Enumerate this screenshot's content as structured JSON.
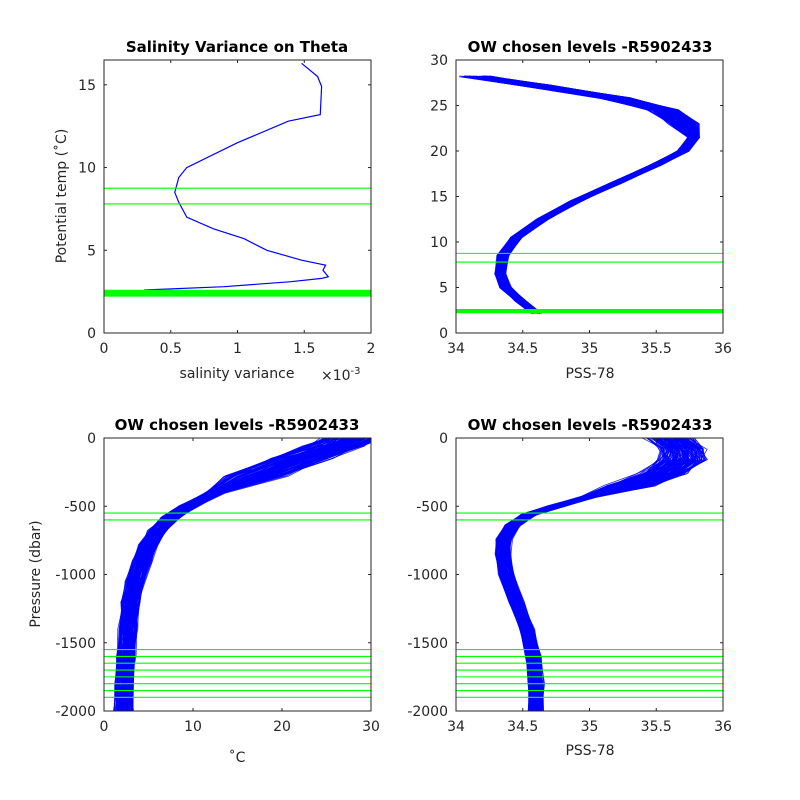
{
  "chart_data": [
    {
      "type": "line",
      "title": "Salinity Variance on Theta",
      "xlabel": "salinity variance",
      "xexponent_base": "×10",
      "xexponent_power": "-3",
      "ylabel": "Potential temp (˚C)",
      "xlim": [
        0,
        2
      ],
      "ylim": [
        0,
        16.5
      ],
      "xticks": [
        0,
        0.5,
        1,
        1.5,
        2
      ],
      "xticklabels": [
        "0",
        "0.5",
        "1",
        "1.5",
        "2"
      ],
      "yticks": [
        0,
        5,
        10,
        15
      ],
      "yticklabels": [
        "0",
        "5",
        "10",
        "15"
      ],
      "line_color": "#0000ff",
      "series": [
        {
          "x": [
            1.48,
            1.6,
            1.63,
            1.62,
            1.38,
            1.0,
            0.62,
            0.56,
            0.54,
            0.53,
            0.56,
            0.62,
            0.82,
            1.05,
            1.17,
            1.22,
            1.48,
            1.66,
            1.64,
            1.68,
            1.63,
            1.4,
            0.9,
            0.3
          ],
          "y": [
            16.3,
            15.5,
            14.9,
            13.2,
            12.8,
            11.5,
            10.0,
            9.4,
            8.8,
            8.5,
            7.9,
            7.0,
            6.3,
            5.7,
            5.2,
            5.0,
            4.4,
            4.1,
            3.8,
            3.4,
            3.3,
            3.1,
            2.8,
            2.6
          ]
        }
      ],
      "chosen_level_color": "#00ff00",
      "chosen_levels": [
        8.75,
        7.8,
        2.58,
        2.53,
        2.48,
        2.43,
        2.38,
        2.33,
        2.28,
        2.23
      ]
    },
    {
      "type": "line",
      "title": "OW chosen levels -R5902433",
      "xlabel": "PSS-78",
      "ylabel": "",
      "xlim": [
        34,
        36
      ],
      "ylim": [
        0,
        30
      ],
      "xticks": [
        34,
        34.5,
        35,
        35.5,
        36
      ],
      "xticklabels": [
        "34",
        "34.5",
        "35",
        "35.5",
        "36"
      ],
      "yticks": [
        0,
        5,
        10,
        15,
        20,
        25,
        30
      ],
      "yticklabels": [
        "0",
        "5",
        "10",
        "15",
        "20",
        "25",
        "30"
      ],
      "line_color": "#0000ff",
      "profile_count": 140,
      "series": [
        {
          "name": "",
          "x": [
            34.15,
            34.6,
            35.2,
            35.55,
            35.7,
            35.78,
            35.7,
            35.5,
            35.2,
            34.9,
            34.65,
            34.45,
            34.35,
            34.33,
            34.37,
            34.48,
            34.6
          ],
          "y": [
            28.2,
            27.2,
            25.8,
            24.5,
            23.0,
            21.5,
            20.0,
            18.5,
            16.5,
            14.5,
            12.5,
            10.5,
            8.5,
            6.5,
            5.0,
            3.5,
            2.2
          ]
        }
      ],
      "chosen_level_color": "#00ff00",
      "chosen_levels": [
        8.75,
        7.8,
        2.58,
        2.53,
        2.48,
        2.43,
        2.38,
        2.33,
        2.28,
        2.23
      ]
    },
    {
      "type": "line",
      "title": "OW chosen levels -R5902433",
      "xlabel": "˚C",
      "ylabel": "Pressure (dbar)",
      "xlim": [
        0,
        30
      ],
      "ylim": [
        -2000,
        0
      ],
      "xticks": [
        0,
        10,
        20,
        30
      ],
      "xticklabels": [
        "0",
        "10",
        "20",
        "30"
      ],
      "yticks": [
        0,
        -500,
        -1000,
        -1500,
        -2000
      ],
      "yticklabels": [
        "0",
        "-500",
        "-1000",
        "-1500",
        "-2000"
      ],
      "line_color": "#0000ff",
      "profile_count": 140,
      "series": [
        {
          "name": "",
          "x": [
            28.0,
            26.0,
            22.0,
            17.0,
            12.5,
            9.5,
            7.5,
            6.0,
            5.0,
            4.3,
            3.5,
            3.0,
            2.7,
            2.5,
            2.3,
            2.2
          ],
          "y": [
            0,
            -60,
            -150,
            -280,
            -400,
            -500,
            -580,
            -680,
            -780,
            -900,
            -1050,
            -1200,
            -1400,
            -1600,
            -1800,
            -2000
          ]
        }
      ],
      "chosen_level_color": "#00ff00",
      "chosen_levels": [
        -550,
        -600,
        -1550,
        -1600,
        -1650,
        -1700,
        -1750,
        -1800,
        -1850,
        -1900
      ]
    },
    {
      "type": "line",
      "title": "OW chosen levels -R5902433",
      "xlabel": "PSS-78",
      "ylabel": "",
      "xlim": [
        34,
        36
      ],
      "ylim": [
        -2000,
        0
      ],
      "xticks": [
        34,
        34.5,
        35,
        35.5,
        36
      ],
      "xticklabels": [
        "34",
        "34.5",
        "35",
        "35.5",
        "36"
      ],
      "yticks": [
        0,
        -500,
        -1000,
        -1500,
        -2000
      ],
      "yticklabels": [
        "0",
        "-500",
        "-1000",
        "-1500",
        "-2000"
      ],
      "line_color": "#0000ff",
      "profile_count": 140,
      "series": [
        {
          "name": "",
          "x": [
            35.6,
            35.7,
            35.7,
            35.55,
            35.3,
            35.0,
            34.75,
            34.55,
            34.42,
            34.36,
            34.35,
            34.38,
            34.45,
            34.53,
            34.58,
            34.6,
            34.6
          ],
          "y": [
            0,
            -80,
            -160,
            -260,
            -350,
            -430,
            -500,
            -560,
            -640,
            -740,
            -850,
            -1000,
            -1200,
            -1400,
            -1600,
            -1800,
            -2000
          ]
        }
      ],
      "chosen_level_color": "#00ff00",
      "chosen_levels": [
        -550,
        -600,
        -1550,
        -1600,
        -1650,
        -1700,
        -1750,
        -1800,
        -1850,
        -1900
      ]
    }
  ]
}
